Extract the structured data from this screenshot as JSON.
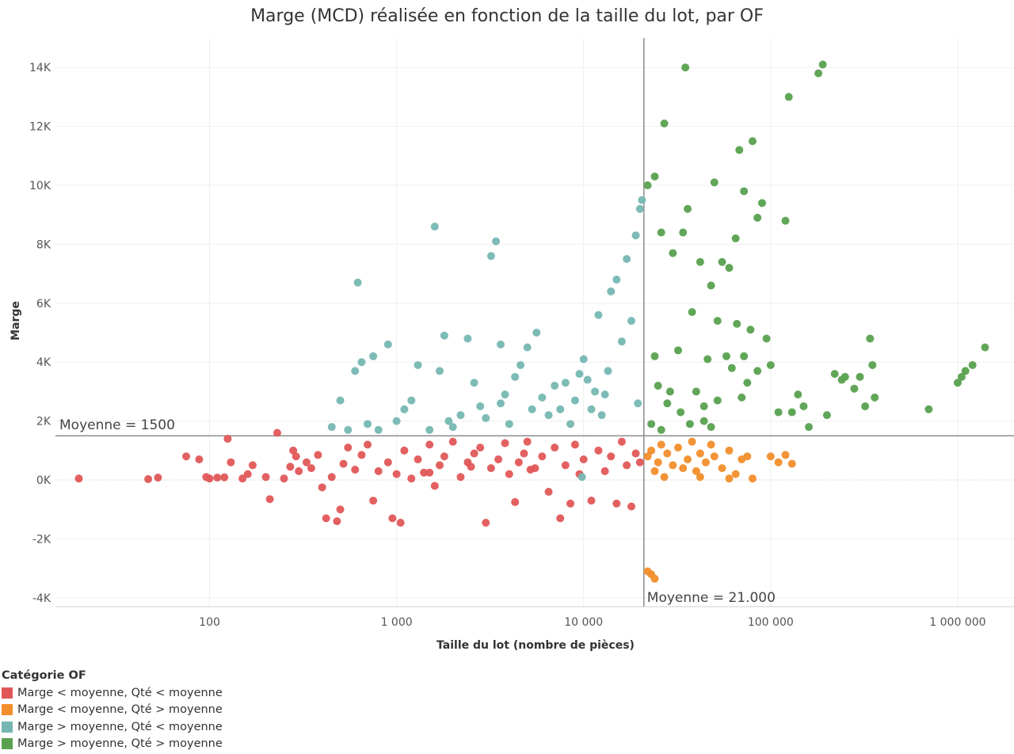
{
  "chart_data": {
    "type": "scatter",
    "title": "Marge (MCD) réalisée en fonction de la taille du lot, par OF",
    "xlabel": "Taille du lot (nombre de pièces)",
    "ylabel": "Marge",
    "x_scale": "log",
    "xlim": [
      15,
      2000000
    ],
    "ylim": [
      -4300,
      15000
    ],
    "x_ticks": [
      100,
      1000,
      10000,
      100000,
      1000000
    ],
    "x_tick_labels": [
      "100",
      "1 000",
      "10 000",
      "100 000",
      "1 000 000"
    ],
    "y_ticks": [
      -4000,
      -2000,
      0,
      2000,
      4000,
      6000,
      8000,
      10000,
      12000,
      14000
    ],
    "y_tick_labels": [
      "-4K",
      "-2K",
      "0K",
      "2K",
      "4K",
      "6K",
      "8K",
      "10K",
      "12K",
      "14K"
    ],
    "grid": true,
    "legend_position": "bottom-left",
    "reference_lines": [
      {
        "axis": "y",
        "value": 1500,
        "label": "Moyenne = 1500"
      },
      {
        "axis": "x",
        "value": 21000,
        "label": "Moyenne = 21.000"
      }
    ],
    "legend_title": "Catégorie OF",
    "series": [
      {
        "name": "Marge < moyenne, Qté < moyenne",
        "color": "#E15759",
        "points": [
          [
            20,
            50
          ],
          [
            47,
            30
          ],
          [
            53,
            80
          ],
          [
            75,
            800
          ],
          [
            88,
            700
          ],
          [
            96,
            100
          ],
          [
            100,
            50
          ],
          [
            110,
            80
          ],
          [
            120,
            90
          ],
          [
            125,
            1400
          ],
          [
            130,
            600
          ],
          [
            150,
            50
          ],
          [
            160,
            200
          ],
          [
            170,
            500
          ],
          [
            200,
            100
          ],
          [
            210,
            -650
          ],
          [
            230,
            1600
          ],
          [
            250,
            50
          ],
          [
            270,
            450
          ],
          [
            280,
            1000
          ],
          [
            290,
            800
          ],
          [
            300,
            300
          ],
          [
            330,
            600
          ],
          [
            350,
            400
          ],
          [
            380,
            850
          ],
          [
            400,
            -250
          ],
          [
            420,
            -1300
          ],
          [
            450,
            100
          ],
          [
            480,
            -1400
          ],
          [
            500,
            -1000
          ],
          [
            520,
            550
          ],
          [
            550,
            1100
          ],
          [
            600,
            350
          ],
          [
            650,
            850
          ],
          [
            700,
            1200
          ],
          [
            750,
            -700
          ],
          [
            800,
            300
          ],
          [
            900,
            600
          ],
          [
            950,
            -1300
          ],
          [
            1000,
            200
          ],
          [
            1050,
            -1450
          ],
          [
            1100,
            1000
          ],
          [
            1200,
            50
          ],
          [
            1300,
            700
          ],
          [
            1400,
            250
          ],
          [
            1500,
            1200
          ],
          [
            1600,
            -200
          ],
          [
            1700,
            500
          ],
          [
            1800,
            800
          ],
          [
            2000,
            1300
          ],
          [
            2200,
            100
          ],
          [
            2400,
            600
          ],
          [
            2600,
            900
          ],
          [
            2800,
            1100
          ],
          [
            3000,
            -1450
          ],
          [
            3200,
            400
          ],
          [
            3500,
            700
          ],
          [
            3800,
            1250
          ],
          [
            4000,
            200
          ],
          [
            4300,
            -750
          ],
          [
            4500,
            600
          ],
          [
            4800,
            900
          ],
          [
            5000,
            1300
          ],
          [
            5500,
            400
          ],
          [
            6000,
            800
          ],
          [
            6500,
            -400
          ],
          [
            7000,
            1100
          ],
          [
            7500,
            -1300
          ],
          [
            8000,
            500
          ],
          [
            8500,
            -800
          ],
          [
            9000,
            1200
          ],
          [
            9500,
            200
          ],
          [
            10000,
            700
          ],
          [
            11000,
            -700
          ],
          [
            12000,
            1000
          ],
          [
            13000,
            300
          ],
          [
            14000,
            800
          ],
          [
            15000,
            -800
          ],
          [
            16000,
            1300
          ],
          [
            17000,
            500
          ],
          [
            18000,
            -900
          ],
          [
            19000,
            900
          ],
          [
            20000,
            600
          ],
          [
            1500,
            250
          ],
          [
            2500,
            450
          ],
          [
            5200,
            350
          ]
        ]
      },
      {
        "name": "Marge < moyenne, Qté > moyenne",
        "color": "#F28E2B",
        "points": [
          [
            22000,
            -3100
          ],
          [
            23000,
            -3200
          ],
          [
            24000,
            -3350
          ],
          [
            22000,
            800
          ],
          [
            23000,
            1000
          ],
          [
            24000,
            300
          ],
          [
            25000,
            600
          ],
          [
            26000,
            1200
          ],
          [
            27000,
            100
          ],
          [
            28000,
            900
          ],
          [
            30000,
            500
          ],
          [
            32000,
            1100
          ],
          [
            34000,
            400
          ],
          [
            36000,
            700
          ],
          [
            38000,
            1300
          ],
          [
            40000,
            300
          ],
          [
            42000,
            900
          ],
          [
            45000,
            600
          ],
          [
            48000,
            1200
          ],
          [
            50000,
            800
          ],
          [
            55000,
            400
          ],
          [
            60000,
            1000
          ],
          [
            65000,
            200
          ],
          [
            70000,
            700
          ],
          [
            75000,
            800
          ],
          [
            80000,
            50
          ],
          [
            100000,
            800
          ],
          [
            110000,
            600
          ],
          [
            120000,
            850
          ],
          [
            130000,
            550
          ],
          [
            60000,
            50
          ],
          [
            42000,
            100
          ]
        ]
      },
      {
        "name": "Marge > moyenne, Qté < moyenne",
        "color": "#76B7B2",
        "points": [
          [
            450,
            1800
          ],
          [
            500,
            2700
          ],
          [
            550,
            1700
          ],
          [
            600,
            3700
          ],
          [
            620,
            6700
          ],
          [
            650,
            4000
          ],
          [
            700,
            1900
          ],
          [
            750,
            4200
          ],
          [
            800,
            1700
          ],
          [
            900,
            4600
          ],
          [
            1000,
            2000
          ],
          [
            1100,
            2400
          ],
          [
            1200,
            2700
          ],
          [
            1300,
            3900
          ],
          [
            1500,
            1700
          ],
          [
            1600,
            8600
          ],
          [
            1700,
            3700
          ],
          [
            1800,
            4900
          ],
          [
            1900,
            2000
          ],
          [
            2000,
            1800
          ],
          [
            2200,
            2200
          ],
          [
            2400,
            4800
          ],
          [
            2600,
            3300
          ],
          [
            2800,
            2500
          ],
          [
            3000,
            2100
          ],
          [
            3200,
            7600
          ],
          [
            3400,
            8100
          ],
          [
            3600,
            4600
          ],
          [
            3800,
            2900
          ],
          [
            4000,
            1900
          ],
          [
            4300,
            3500
          ],
          [
            4600,
            3900
          ],
          [
            5000,
            4500
          ],
          [
            5300,
            2400
          ],
          [
            5600,
            5000
          ],
          [
            6000,
            2800
          ],
          [
            6500,
            2200
          ],
          [
            7000,
            3200
          ],
          [
            7500,
            2400
          ],
          [
            8000,
            3300
          ],
          [
            8500,
            1900
          ],
          [
            9000,
            2700
          ],
          [
            9500,
            3600
          ],
          [
            10000,
            4100
          ],
          [
            10500,
            3400
          ],
          [
            11000,
            2400
          ],
          [
            12000,
            5600
          ],
          [
            13000,
            2900
          ],
          [
            13500,
            3700
          ],
          [
            14000,
            6400
          ],
          [
            15000,
            6800
          ],
          [
            16000,
            4700
          ],
          [
            17000,
            7500
          ],
          [
            18000,
            5400
          ],
          [
            19000,
            8300
          ],
          [
            20000,
            9200
          ],
          [
            20500,
            9500
          ],
          [
            19500,
            2600
          ],
          [
            11500,
            3000
          ],
          [
            9800,
            100
          ],
          [
            12500,
            2200
          ],
          [
            3600,
            2600
          ]
        ]
      },
      {
        "name": "Marge > moyenne, Qté > moyenne",
        "color": "#59A14F",
        "points": [
          [
            22000,
            10000
          ],
          [
            23000,
            1900
          ],
          [
            24000,
            10300
          ],
          [
            25000,
            3200
          ],
          [
            26000,
            8400
          ],
          [
            27000,
            12100
          ],
          [
            28000,
            2600
          ],
          [
            30000,
            7700
          ],
          [
            32000,
            4400
          ],
          [
            34000,
            8400
          ],
          [
            35000,
            14000
          ],
          [
            36000,
            9200
          ],
          [
            38000,
            5700
          ],
          [
            40000,
            3000
          ],
          [
            42000,
            7400
          ],
          [
            44000,
            2500
          ],
          [
            46000,
            4100
          ],
          [
            48000,
            6600
          ],
          [
            50000,
            10100
          ],
          [
            52000,
            2700
          ],
          [
            55000,
            7400
          ],
          [
            58000,
            4200
          ],
          [
            60000,
            7200
          ],
          [
            62000,
            3800
          ],
          [
            65000,
            8200
          ],
          [
            68000,
            11200
          ],
          [
            70000,
            2800
          ],
          [
            72000,
            9800
          ],
          [
            75000,
            3300
          ],
          [
            78000,
            5100
          ],
          [
            80000,
            11500
          ],
          [
            85000,
            8900
          ],
          [
            90000,
            9400
          ],
          [
            95000,
            4800
          ],
          [
            100000,
            3900
          ],
          [
            110000,
            2300
          ],
          [
            120000,
            8800
          ],
          [
            125000,
            13000
          ],
          [
            130000,
            2300
          ],
          [
            140000,
            2900
          ],
          [
            150000,
            2500
          ],
          [
            180000,
            13800
          ],
          [
            190000,
            14100
          ],
          [
            200000,
            2200
          ],
          [
            220000,
            3600
          ],
          [
            250000,
            3500
          ],
          [
            280000,
            3100
          ],
          [
            300000,
            3500
          ],
          [
            320000,
            2500
          ],
          [
            340000,
            4800
          ],
          [
            350000,
            3900
          ],
          [
            360000,
            2800
          ],
          [
            700000,
            2400
          ],
          [
            1000000,
            3300
          ],
          [
            1050000,
            3500
          ],
          [
            1100000,
            3700
          ],
          [
            1200000,
            3900
          ],
          [
            1400000,
            4500
          ],
          [
            24000,
            4200
          ],
          [
            26000,
            1700
          ],
          [
            29000,
            3000
          ],
          [
            33000,
            2300
          ],
          [
            37000,
            1900
          ],
          [
            44000,
            2000
          ],
          [
            48000,
            1800
          ],
          [
            52000,
            5400
          ],
          [
            66000,
            5300
          ],
          [
            72000,
            4200
          ],
          [
            85000,
            3700
          ],
          [
            160000,
            1800
          ],
          [
            240000,
            3400
          ]
        ]
      }
    ]
  }
}
